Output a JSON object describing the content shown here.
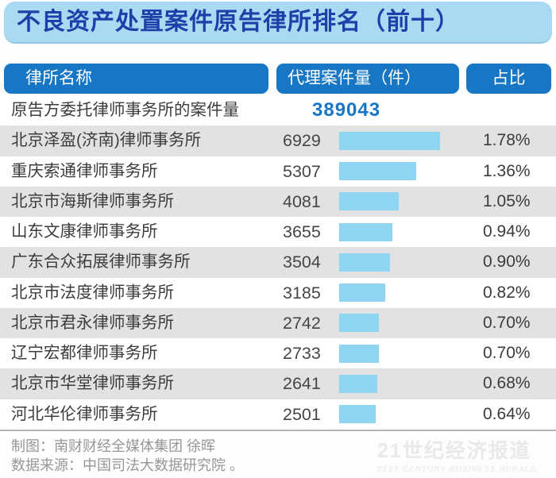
{
  "title": "不良资产处置案件原告律所排名（前十）",
  "columns": {
    "name": "律所名称",
    "cases": "代理案件量（件）",
    "share": "占比"
  },
  "total_row": {
    "label": "原告方委托律师事务所的案件量",
    "value": "389043"
  },
  "chart_data": {
    "type": "bar",
    "orientation": "horizontal",
    "title": "不良资产处置案件原告律所排名（前十）",
    "categories": [
      "北京泽盈(济南)律师事务所",
      "重庆索通律师事务所",
      "北京市海斯律师事务所",
      "山东文康律师事务所",
      "广东合众拓展律师事务所",
      "北京市法度律师事务所",
      "北京市君永律师事务所",
      "辽宁宏都律师事务所",
      "北京市华堂律师事务所",
      "河北华伦律师事务所"
    ],
    "values": [
      6929,
      5307,
      4081,
      3655,
      3504,
      3185,
      2742,
      2733,
      2641,
      2501
    ],
    "share_labels": [
      "1.78%",
      "1.36%",
      "1.05%",
      "0.94%",
      "0.90%",
      "0.82%",
      "0.70%",
      "0.70%",
      "0.68%",
      "0.64%"
    ],
    "total_cases": 389043,
    "xlabel": "",
    "ylabel": "",
    "legend": "none",
    "grid": "off",
    "bar_color": "#8fd4f0"
  },
  "footer": {
    "credit": "制图：南财财经全媒体集团 徐晖",
    "source": "数据来源：中国司法大数据研究院 。"
  },
  "watermark": {
    "cn": "21世纪经济报道",
    "en": "21ST CENTURY BUSINESS HERALD"
  },
  "colors": {
    "title_bg": "#a9daf1",
    "title_text": "#1d3fa9",
    "header_pill_bg": "#1777c4",
    "header_pill_text": "#ffffff",
    "bar": "#8fd4f0",
    "row_alt_bg": "#e2e2e2",
    "total_value_text": "#1777c4",
    "footer_text": "#979797"
  }
}
